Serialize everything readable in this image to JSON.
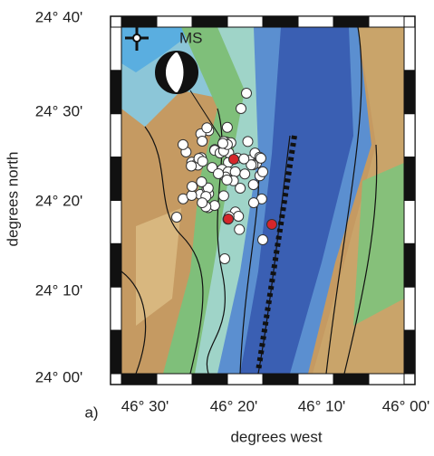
{
  "axes": {
    "y_label": "degrees north",
    "x_label": "degrees west",
    "y_tick_labels": [
      "24° 40'",
      "24° 30'",
      "24° 20'",
      "24° 10'",
      "24° 00'"
    ],
    "x_tick_labels": [
      "46° 30'",
      "46° 20'",
      "46° 10'",
      "46° 00'"
    ]
  },
  "panel_label": "a)",
  "annotation": "MS"
}
